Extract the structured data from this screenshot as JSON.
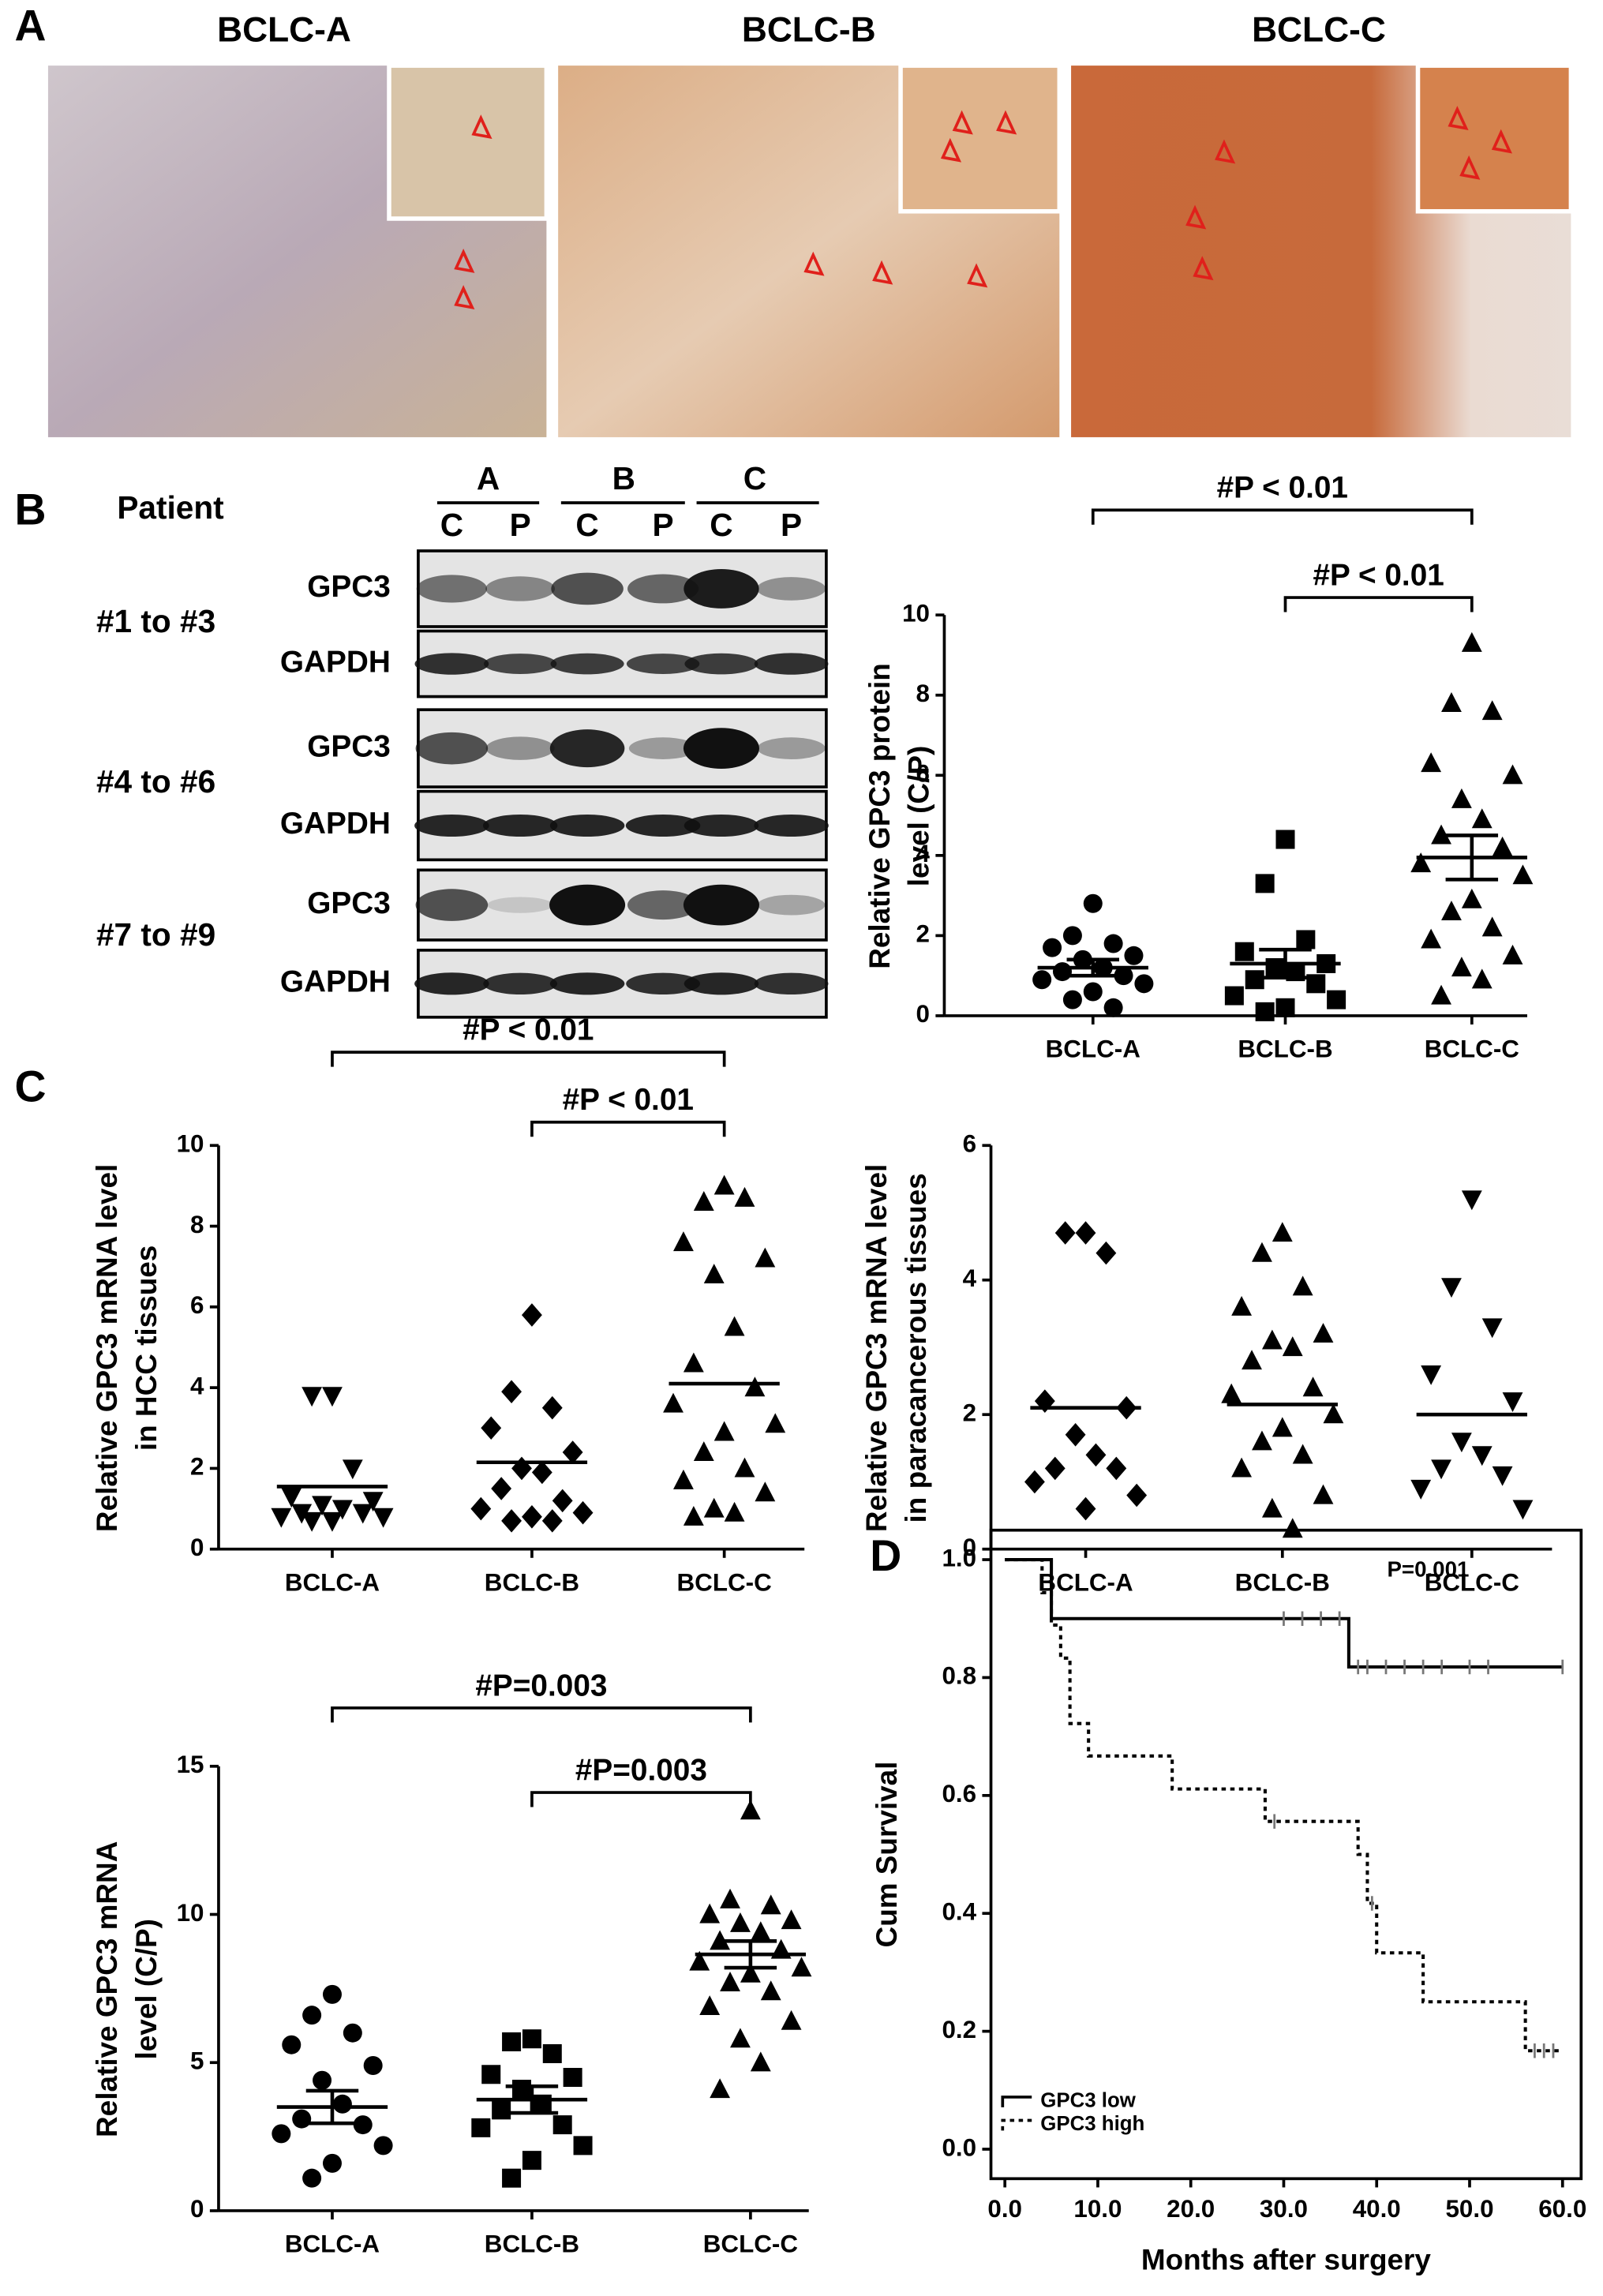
{
  "panels": {
    "labels": [
      "A",
      "B",
      "C",
      "D"
    ]
  },
  "histology": {
    "titles": [
      "BCLC-A",
      "BCLC-B",
      "BCLC-C"
    ]
  },
  "western_blot": {
    "patient_label": "Patient",
    "groups": [
      "A",
      "B",
      "C"
    ],
    "lanes": [
      "C",
      "P",
      "C",
      "P",
      "C",
      "P"
    ],
    "row_groups": [
      "#1 to #3",
      "#4 to #6",
      "#7 to #9"
    ],
    "bands": [
      "GPC3",
      "GAPDH"
    ]
  },
  "chart_data": [
    {
      "type": "dot_plot",
      "ylabel": [
        "Relative GPC3 protein",
        "level (C/P)"
      ],
      "categories": [
        "BCLC-A",
        "BCLC-B",
        "BCLC-C"
      ],
      "color": "#000000",
      "groups": [
        {
          "marker": "circle",
          "values": [
            2.8,
            2.0,
            1.8,
            1.7,
            1.5,
            1.4,
            1.2,
            1.1,
            1.0,
            0.9,
            0.8,
            0.6,
            0.4,
            0.2
          ],
          "mean": 1.2,
          "sem": 0.2
        },
        {
          "marker": "square",
          "values": [
            4.4,
            3.3,
            1.9,
            1.6,
            1.3,
            1.2,
            1.1,
            0.9,
            0.8,
            0.5,
            0.4,
            0.2,
            0.1
          ],
          "mean": 1.3,
          "sem": 0.35
        },
        {
          "marker": "triangle-up",
          "values": [
            9.3,
            7.8,
            7.6,
            6.3,
            6.0,
            5.4,
            4.9,
            4.5,
            4.2,
            3.8,
            3.5,
            2.9,
            2.6,
            2.2,
            1.9,
            1.5,
            1.2,
            0.9,
            0.5
          ],
          "mean": 3.95,
          "sem": 0.55
        }
      ],
      "ylim": [
        0,
        10
      ],
      "yticks": [
        0,
        2,
        4,
        6,
        8,
        10
      ],
      "annotations": [
        "#P < 0.01",
        "#P < 0.01"
      ]
    },
    {
      "type": "dot_plot",
      "ylabel": [
        "Relative GPC3 mRNA level",
        "in HCC tissues"
      ],
      "categories": [
        "BCLC-A",
        "BCLC-B",
        "BCLC-C"
      ],
      "color": "#000000",
      "groups": [
        {
          "marker": "triangle-down",
          "values": [
            3.8,
            3.8,
            2.0,
            1.3,
            1.2,
            1.1,
            1.0,
            0.9,
            0.9,
            0.8,
            0.8,
            0.7,
            0.7
          ],
          "mean": 1.55
        },
        {
          "marker": "diamond",
          "values": [
            5.8,
            3.9,
            3.5,
            3.0,
            2.4,
            2.0,
            1.9,
            1.5,
            1.2,
            1.0,
            0.9,
            0.8,
            0.7,
            0.7
          ],
          "mean": 2.15
        },
        {
          "marker": "triangle-up",
          "values": [
            9.0,
            8.6,
            8.7,
            7.6,
            7.2,
            6.8,
            5.5,
            4.6,
            4.0,
            3.6,
            3.1,
            2.9,
            2.4,
            2.0,
            1.7,
            1.4,
            1.0,
            0.9,
            0.8
          ],
          "mean": 4.1
        }
      ],
      "ylim": [
        0,
        10
      ],
      "yticks": [
        0,
        2,
        4,
        6,
        8,
        10
      ],
      "annotations": [
        "#P < 0.01",
        "#P < 0.01"
      ]
    },
    {
      "type": "dot_plot",
      "ylabel": [
        "Relative GPC3 mRNA level",
        "in paracancerous tissues"
      ],
      "categories": [
        "BCLC-A",
        "BCLC-B",
        "BCLC-C"
      ],
      "color": "#000000",
      "groups": [
        {
          "marker": "diamond",
          "values": [
            4.7,
            4.7,
            4.4,
            2.2,
            2.1,
            1.7,
            1.4,
            1.2,
            1.2,
            1.0,
            0.8,
            0.6
          ],
          "mean": 2.1
        },
        {
          "marker": "triangle-up",
          "values": [
            4.7,
            4.4,
            3.9,
            3.6,
            3.2,
            3.1,
            3.0,
            2.8,
            2.4,
            2.3,
            2.0,
            1.8,
            1.6,
            1.4,
            1.2,
            0.8,
            0.6,
            0.3
          ],
          "mean": 2.15
        },
        {
          "marker": "triangle-down",
          "values": [
            5.2,
            3.9,
            3.3,
            2.6,
            2.2,
            1.6,
            1.4,
            1.2,
            1.1,
            0.9,
            0.6
          ],
          "mean": 2.0
        }
      ],
      "ylim": [
        0,
        6
      ],
      "yticks": [
        0,
        2,
        4,
        6
      ],
      "annotations": []
    },
    {
      "type": "dot_plot",
      "ylabel": [
        "Relative GPC3 mRNA",
        "level (C/P)"
      ],
      "categories": [
        "BCLC-A",
        "BCLC-B",
        "BCLC-C"
      ],
      "color": "#000000",
      "groups": [
        {
          "marker": "circle",
          "values": [
            7.3,
            6.6,
            6.0,
            5.6,
            4.9,
            4.4,
            3.6,
            3.1,
            2.9,
            2.6,
            2.2,
            1.6,
            1.1
          ],
          "mean": 3.5,
          "sem": 0.55
        },
        {
          "marker": "square",
          "values": [
            5.8,
            5.7,
            5.3,
            4.6,
            4.5,
            4.1,
            3.6,
            3.4,
            2.9,
            2.8,
            2.2,
            1.7,
            1.1
          ],
          "mean": 3.75,
          "sem": 0.45
        },
        {
          "marker": "triangle-up",
          "values": [
            13.5,
            10.5,
            10.3,
            10.0,
            9.8,
            9.7,
            9.4,
            9.1,
            8.8,
            8.4,
            8.2,
            8.0,
            7.7,
            7.4,
            6.9,
            6.4,
            5.8,
            5.0,
            4.1
          ],
          "mean": 8.65,
          "sem": 0.45
        }
      ],
      "ylim": [
        0,
        15
      ],
      "yticks": [
        0,
        5,
        10,
        15
      ],
      "annotations": [
        "#P=0.003",
        "#P=0.003"
      ]
    },
    {
      "type": "survival",
      "xlabel": "Months after surgery",
      "ylabel": "Cum Survival",
      "annotation": "P=0.001",
      "legend": "lower left",
      "xlim": [
        -1.5,
        62
      ],
      "xticks": [
        {
          "value": 0,
          "label": "0.0"
        },
        {
          "value": 10,
          "label": "10.0"
        },
        {
          "value": 20,
          "label": "20.0"
        },
        {
          "value": 30,
          "label": "30.0"
        },
        {
          "value": 40,
          "label": "40.0"
        },
        {
          "value": 50,
          "label": "50.0"
        },
        {
          "value": 60,
          "label": "60.0"
        }
      ],
      "ylim": [
        -0.05,
        1.05
      ],
      "yticks": [
        {
          "value": 0,
          "label": "0.0"
        },
        {
          "value": 0.2,
          "label": "0.2"
        },
        {
          "value": 0.4,
          "label": "0.4"
        },
        {
          "value": 0.6,
          "label": "0.6"
        },
        {
          "value": 0.8,
          "label": "0.8"
        },
        {
          "value": 1,
          "label": "1.0"
        }
      ],
      "series": [
        {
          "name": "GPC3 low",
          "style": "solid",
          "color": "#000000",
          "x": [
            0,
            5,
            37,
            60
          ],
          "values": [
            1.0,
            0.9,
            0.818,
            0.818
          ],
          "censor_x": [
            30,
            32,
            34,
            36,
            38,
            39,
            41,
            43,
            45,
            47,
            50,
            52,
            60
          ],
          "censor_values": [
            0.9,
            0.9,
            0.9,
            0.9,
            0.818,
            0.818,
            0.818,
            0.818,
            0.818,
            0.818,
            0.818,
            0.818,
            0.818
          ]
        },
        {
          "name": "GPC3 high",
          "style": "dotted",
          "color": "#000000",
          "x": [
            0,
            4,
            5,
            6,
            7,
            9,
            18,
            28,
            38,
            39,
            40,
            45,
            56,
            60
          ],
          "values": [
            1.0,
            0.944,
            0.889,
            0.833,
            0.722,
            0.667,
            0.611,
            0.556,
            0.5,
            0.417,
            0.333,
            0.25,
            0.167,
            0.167
          ],
          "censor_x": [
            29,
            39.5,
            57,
            58,
            59
          ],
          "censor_values": [
            0.556,
            0.417,
            0.167,
            0.167,
            0.167
          ]
        }
      ]
    }
  ]
}
